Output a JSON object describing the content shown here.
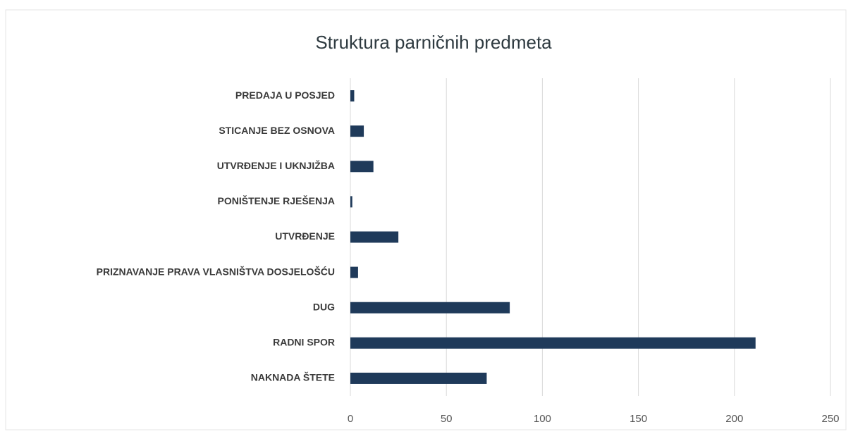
{
  "chart_data": {
    "type": "bar",
    "orientation": "horizontal",
    "title": "Struktura parničnih predmeta",
    "categories": [
      "PREDAJA U POSJED",
      "STICANJE BEZ OSNOVA",
      "UTVRĐENJE I UKNJIŽBA",
      "PONIŠTENJE RJEŠENJA",
      "UTVRĐENJE ",
      "PRIZNAVANJE PRAVA VLASNIŠTVA DOSJELOŠĆU",
      "DUG",
      "RADNI SPOR",
      "NAKNADA ŠTETE"
    ],
    "values": [
      2,
      7,
      12,
      1,
      25,
      4,
      83,
      211,
      71
    ],
    "color": "#1f3a5a",
    "xlim": [
      0,
      250
    ],
    "xticks": [
      0,
      50,
      100,
      150,
      200,
      250
    ],
    "grid": true
  }
}
